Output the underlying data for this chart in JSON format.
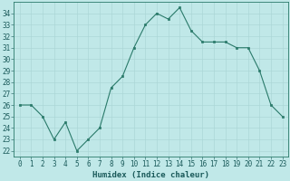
{
  "x": [
    0,
    1,
    2,
    3,
    4,
    5,
    6,
    7,
    8,
    9,
    10,
    11,
    12,
    13,
    14,
    15,
    16,
    17,
    18,
    19,
    20,
    21,
    22,
    23
  ],
  "y": [
    26,
    26,
    25,
    23,
    24.5,
    22,
    23,
    24,
    27.5,
    28.5,
    31,
    33,
    34,
    33.5,
    34.5,
    32.5,
    31.5,
    31.5,
    31.5,
    31,
    31,
    29,
    26,
    25
  ],
  "line_color": "#2a7a6a",
  "marker_color": "#2a7a6a",
  "bg_color": "#c0e8e8",
  "grid_color": "#a8d4d4",
  "xlabel": "Humidex (Indice chaleur)",
  "xlim": [
    -0.5,
    23.5
  ],
  "ylim": [
    21.5,
    35.0
  ],
  "xticks": [
    0,
    1,
    2,
    3,
    4,
    5,
    6,
    7,
    8,
    9,
    10,
    11,
    12,
    13,
    14,
    15,
    16,
    17,
    18,
    19,
    20,
    21,
    22,
    23
  ],
  "yticks": [
    22,
    23,
    24,
    25,
    26,
    27,
    28,
    29,
    30,
    31,
    32,
    33,
    34
  ],
  "xlabel_fontsize": 6.5,
  "tick_fontsize": 5.5
}
